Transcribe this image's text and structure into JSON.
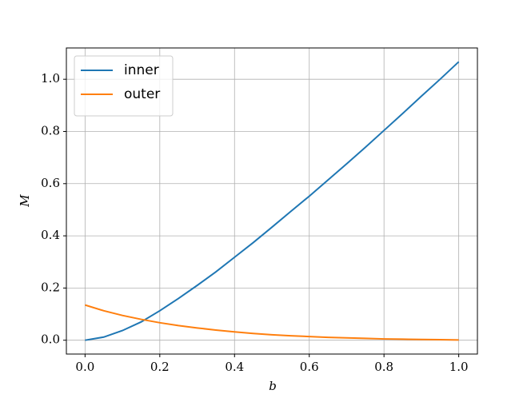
{
  "chart_data": {
    "type": "line",
    "x": [
      0,
      0.05,
      0.1,
      0.15,
      0.2,
      0.25,
      0.3,
      0.35,
      0.4,
      0.45,
      0.5,
      0.55,
      0.6,
      0.65,
      0.7,
      0.75,
      0.8,
      0.85,
      0.9,
      0.95,
      1.0
    ],
    "series": [
      {
        "name": "inner",
        "color": "#1f77b4",
        "values": [
          0,
          0.012,
          0.037,
          0.07,
          0.113,
          0.16,
          0.21,
          0.262,
          0.318,
          0.374,
          0.433,
          0.493,
          0.552,
          0.614,
          0.676,
          0.739,
          0.804,
          0.869,
          0.935,
          1.0,
          1.067
        ]
      },
      {
        "name": "outer",
        "color": "#ff7f0e",
        "values": [
          0.135,
          0.113,
          0.095,
          0.08,
          0.067,
          0.056,
          0.047,
          0.039,
          0.032,
          0.026,
          0.021,
          0.017,
          0.014,
          0.011,
          0.009,
          0.007,
          0.005,
          0.004,
          0.003,
          0.002,
          0.001
        ]
      }
    ],
    "x_label": "b",
    "y_label": "M",
    "xlim": [
      -0.05,
      1.05
    ],
    "ylim": [
      -0.053,
      1.12
    ],
    "xticks": [
      {
        "value": 0,
        "label": "0.0"
      },
      0.2,
      0.4,
      0.6,
      0.8,
      {
        "value": 1,
        "label": "1.0"
      }
    ],
    "yticks": [
      {
        "value": 0,
        "label": "0.0"
      },
      0.2,
      0.4,
      0.6,
      0.8,
      {
        "value": 1,
        "label": "1.0"
      }
    ],
    "grid": true,
    "legend": "upper-left"
  }
}
